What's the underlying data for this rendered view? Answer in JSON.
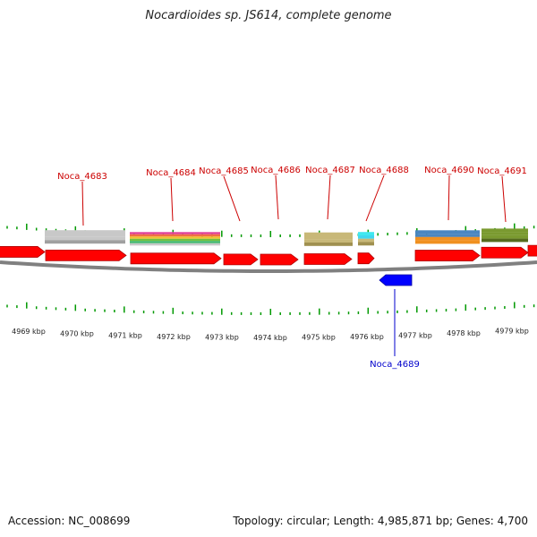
{
  "title": "Nocardioides sp. JS614, complete genome",
  "footer": {
    "accession": "Accession: NC_008699",
    "stats": "Topology: circular; Length: 4,985,871 bp; Genes: 4,700"
  },
  "colors": {
    "forward_gene": "#ff0000",
    "reverse_gene": "#0000ff",
    "forward_label": "#cc0000",
    "reverse_label": "#0000cc",
    "tick": "#009900",
    "backbone": "#808080"
  },
  "axis": {
    "ticks": [
      "4969 kbp",
      "4970 kbp",
      "4971 kbp",
      "4972 kbp",
      "4973 kbp",
      "4974 kbp",
      "4975 kbp",
      "4976 kbp",
      "4977 kbp",
      "4978 kbp",
      "4979 kbp"
    ]
  },
  "genes": [
    {
      "name": "Noca_4683",
      "strand": "+"
    },
    {
      "name": "Noca_4684",
      "strand": "+"
    },
    {
      "name": "Noca_4685",
      "strand": "+"
    },
    {
      "name": "Noca_4686",
      "strand": "+"
    },
    {
      "name": "Noca_4687",
      "strand": "+"
    },
    {
      "name": "Noca_4688",
      "strand": "+"
    },
    {
      "name": "Noca_4689",
      "strand": "-"
    },
    {
      "name": "Noca_4690",
      "strand": "+"
    },
    {
      "name": "Noca_4691",
      "strand": "+"
    }
  ]
}
